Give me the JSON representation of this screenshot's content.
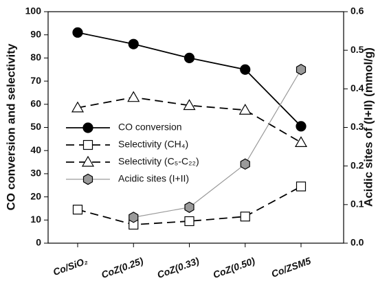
{
  "chart_data": {
    "type": "line",
    "categories": [
      "Co/SiO₂",
      "CoZ(0.25)",
      "CoZ(0.33)",
      "CoZ(0.50)",
      "Co/ZSM5"
    ],
    "y_label": "CO conversion and selectivity",
    "y2_label": "Acidic sites of (I+II) (mmol/g)",
    "ylim": [
      0,
      100
    ],
    "yticks": [
      0,
      10,
      20,
      30,
      40,
      50,
      60,
      70,
      80,
      90,
      100
    ],
    "y2lim": [
      0,
      0.6
    ],
    "y2ticks": [
      {
        "value": 0,
        "label": "0.0"
      },
      0.1,
      0.2,
      0.3,
      0.4,
      0.5,
      0.6
    ],
    "series": [
      {
        "name": "CO conversion",
        "color": "#000000",
        "marker": "circle",
        "dash": "solid",
        "values": [
          91,
          86,
          80,
          75,
          50.5
        ]
      },
      {
        "name": "Selectivity (CH₄)",
        "color": "#000000",
        "marker": "square",
        "dash": "dashed",
        "values": [
          14.5,
          8,
          9.5,
          11.5,
          24.5
        ]
      },
      {
        "name": "Selectivity (C₅-C₂₂)",
        "color": "#000000",
        "marker": "triangle",
        "dash": "dashed",
        "values": [
          58.5,
          63,
          59.5,
          57.5,
          43.5
        ]
      },
      {
        "name": "Acidic sites (I+II)",
        "color": "#9a9a9a",
        "marker": "hexagon",
        "dash": "solid",
        "axis": "y2",
        "values": [
          null,
          0.067,
          0.093,
          0.205,
          0.45
        ]
      }
    ]
  }
}
